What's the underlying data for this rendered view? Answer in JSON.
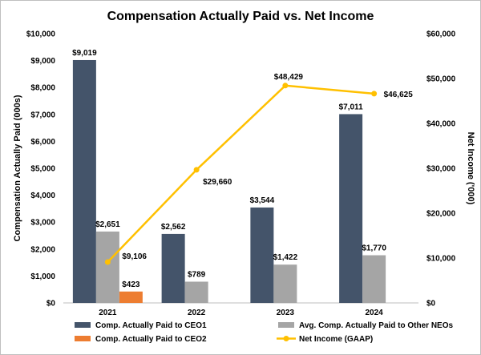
{
  "chart_data": {
    "type": "bar",
    "title": "Compensation Actually Paid  vs. Net Income",
    "xlabel": "",
    "ylabel": "Compensation Actually Paid (000s)",
    "y2label": "Net Income ('000)",
    "ylim": [
      0,
      10000
    ],
    "y2lim": [
      0,
      60000
    ],
    "yticks": [
      "$0",
      "$1,000",
      "$2,000",
      "$3,000",
      "$4,000",
      "$5,000",
      "$6,000",
      "$7,000",
      "$8,000",
      "$9,000",
      "$10,000"
    ],
    "y2ticks": [
      "$0",
      "$10,000",
      "$20,000",
      "$30,000",
      "$40,000",
      "$50,000",
      "$60,000"
    ],
    "categories": [
      "2021",
      "2022",
      "2023",
      "2024"
    ],
    "series": [
      {
        "name": "Comp. Actually Paid to CEO1",
        "type": "bar",
        "axis": "left",
        "color": "#44546a",
        "values": [
          9019,
          2562,
          3544,
          7011
        ],
        "labels": [
          "$9,019",
          "$2,562",
          "$3,544",
          "$7,011"
        ]
      },
      {
        "name": "Avg. Comp. Actually Paid to Other NEOs",
        "type": "bar",
        "axis": "left",
        "color": "#a5a5a5",
        "values": [
          2651,
          789,
          1422,
          1770
        ],
        "labels": [
          "$2,651",
          "$789",
          "$1,422",
          "$1,770"
        ]
      },
      {
        "name": "Comp. Actually Paid to CEO2",
        "type": "bar",
        "axis": "left",
        "color": "#ed7d31",
        "values": [
          423,
          null,
          null,
          null
        ],
        "labels": [
          "$423",
          null,
          null,
          null
        ]
      },
      {
        "name": "Net Income (GAAP)",
        "type": "line",
        "axis": "right",
        "color": "#ffc000",
        "values": [
          9106,
          29660,
          48429,
          46625
        ],
        "labels": [
          "$9,106",
          "$29,660",
          "$48,429",
          "$46,625"
        ]
      }
    ],
    "legend": {
      "position": "bottom"
    },
    "grid": false
  }
}
